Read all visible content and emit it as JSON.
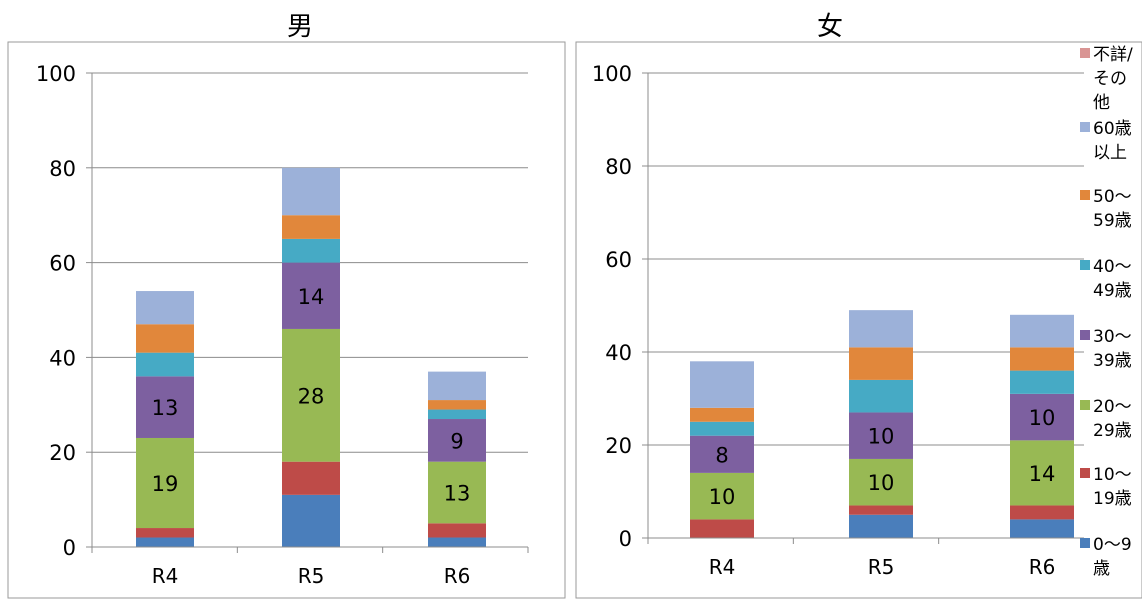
{
  "chart_data": [
    {
      "type": "bar",
      "stacked": true,
      "title": "男",
      "categories": [
        "R4",
        "R5",
        "R6"
      ],
      "ylim": [
        0,
        100
      ],
      "yticks": [
        0,
        20,
        40,
        60,
        80,
        100
      ],
      "grid": true,
      "series": [
        {
          "key": "s0",
          "values": [
            2,
            11,
            2
          ]
        },
        {
          "key": "s1",
          "values": [
            2,
            7,
            3
          ]
        },
        {
          "key": "s2",
          "values": [
            19,
            28,
            13
          ]
        },
        {
          "key": "s3",
          "values": [
            13,
            14,
            9
          ]
        },
        {
          "key": "s4",
          "values": [
            5,
            5,
            2
          ]
        },
        {
          "key": "s5",
          "values": [
            6,
            5,
            2
          ]
        },
        {
          "key": "s6",
          "values": [
            7,
            10,
            6
          ]
        },
        {
          "key": "s7",
          "values": [
            0,
            0,
            0
          ]
        }
      ],
      "data_labels": [
        {
          "series": 2,
          "category": 0,
          "text": "19"
        },
        {
          "series": 3,
          "category": 0,
          "text": "13"
        },
        {
          "series": 2,
          "category": 1,
          "text": "28"
        },
        {
          "series": 3,
          "category": 1,
          "text": "14"
        },
        {
          "series": 2,
          "category": 2,
          "text": "13"
        },
        {
          "series": 3,
          "category": 2,
          "text": "9"
        }
      ]
    },
    {
      "type": "bar",
      "stacked": true,
      "title": "女",
      "categories": [
        "R4",
        "R5",
        "R6"
      ],
      "ylim": [
        0,
        100
      ],
      "yticks": [
        0,
        20,
        40,
        60,
        80,
        100
      ],
      "grid": true,
      "legend_position": "right",
      "series": [
        {
          "key": "s0",
          "name": "0～9歳",
          "values": [
            0,
            5,
            4
          ]
        },
        {
          "key": "s1",
          "name": "10～19歳",
          "values": [
            4,
            2,
            3
          ]
        },
        {
          "key": "s2",
          "name": "20～29歳",
          "values": [
            10,
            10,
            14
          ]
        },
        {
          "key": "s3",
          "name": "30～39歳",
          "values": [
            8,
            10,
            10
          ]
        },
        {
          "key": "s4",
          "name": "40～49歳",
          "values": [
            3,
            7,
            5
          ]
        },
        {
          "key": "s5",
          "name": "50～59歳",
          "values": [
            3,
            7,
            5
          ]
        },
        {
          "key": "s6",
          "name": "60歳以上",
          "values": [
            10,
            8,
            7
          ]
        },
        {
          "key": "s7",
          "name": "不詳/その他",
          "values": [
            0,
            0,
            0
          ]
        }
      ],
      "data_labels": [
        {
          "series": 2,
          "category": 0,
          "text": "10"
        },
        {
          "series": 3,
          "category": 0,
          "text": "8"
        },
        {
          "series": 2,
          "category": 1,
          "text": "10"
        },
        {
          "series": 3,
          "category": 1,
          "text": "10"
        },
        {
          "series": 2,
          "category": 2,
          "text": "14"
        },
        {
          "series": 3,
          "category": 2,
          "text": "10"
        }
      ]
    }
  ],
  "legend": {
    "items": [
      {
        "key": "s7",
        "lines": [
          "不詳/",
          "その",
          "他"
        ]
      },
      {
        "key": "s6",
        "lines": [
          "60歳",
          "以上"
        ]
      },
      {
        "key": "s5",
        "lines": [
          "50～",
          "59歳"
        ]
      },
      {
        "key": "s4",
        "lines": [
          "40～",
          "49歳"
        ]
      },
      {
        "key": "s3",
        "lines": [
          "30～",
          "39歳"
        ]
      },
      {
        "key": "s2",
        "lines": [
          "20～",
          "29歳"
        ]
      },
      {
        "key": "s1",
        "lines": [
          "10～",
          "19歳"
        ]
      },
      {
        "key": "s0",
        "lines": [
          "0～9",
          "歳"
        ]
      }
    ]
  },
  "colors": {
    "s0": "#4a7ebb",
    "s1": "#be4b48",
    "s2": "#98b954",
    "s3": "#7d60a0",
    "s4": "#46aac5",
    "s5": "#e1873b",
    "s6": "#9cb1d9",
    "s7": "#d99594"
  }
}
